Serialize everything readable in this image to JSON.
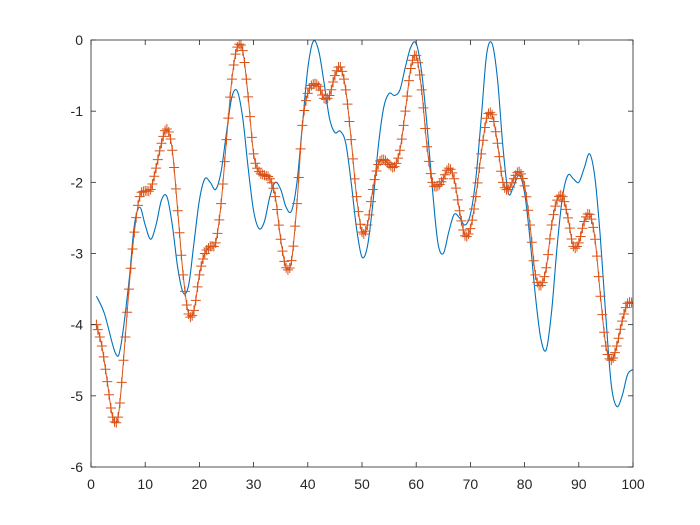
{
  "chart_data": {
    "type": "line",
    "title": "",
    "xlabel": "",
    "ylabel": "",
    "xlim": [
      0,
      100
    ],
    "ylim": [
      -6,
      0
    ],
    "grid": false,
    "box": true,
    "x_ticks": [
      0,
      10,
      20,
      30,
      40,
      50,
      60,
      70,
      80,
      90,
      100
    ],
    "y_ticks": [
      0,
      -1,
      -2,
      -3,
      -4,
      -5,
      -6
    ],
    "x_tick_labels": [
      "0",
      "10",
      "20",
      "30",
      "40",
      "50",
      "60",
      "70",
      "80",
      "90",
      "100"
    ],
    "y_tick_labels": [
      "0",
      "-1",
      "-2",
      "-3",
      "-4",
      "-5",
      "-6"
    ],
    "series": [
      {
        "style": "line",
        "color": "#0072BD",
        "x": [
          1,
          2.5,
          4.5,
          5.5,
          7,
          8,
          9,
          10,
          11,
          12,
          13,
          14,
          15,
          16,
          17,
          18,
          19,
          20,
          21,
          22,
          23,
          24,
          25,
          26,
          27,
          28,
          29,
          30,
          31,
          32,
          33,
          34,
          35,
          36,
          37,
          38,
          39,
          40,
          41,
          42,
          43,
          44,
          45,
          46,
          47,
          48,
          49,
          50,
          51,
          52,
          53,
          54,
          55,
          56,
          57,
          58,
          59,
          60,
          61,
          62,
          63,
          64,
          65,
          66,
          67,
          68,
          69,
          70,
          71,
          72,
          73,
          74,
          75,
          76,
          77,
          78,
          79,
          80,
          81,
          82,
          83,
          84,
          85,
          86,
          87,
          88,
          89,
          90,
          91,
          92,
          93,
          94,
          95,
          96,
          97,
          98,
          99,
          100
        ],
        "y": [
          -3.6,
          -3.85,
          -4.4,
          -4.3,
          -3.4,
          -2.6,
          -2.35,
          -2.6,
          -2.8,
          -2.6,
          -2.25,
          -2.2,
          -2.6,
          -3.2,
          -3.55,
          -3.45,
          -2.85,
          -2.25,
          -1.95,
          -2.0,
          -2.1,
          -1.85,
          -1.3,
          -0.8,
          -0.72,
          -1.1,
          -1.8,
          -2.4,
          -2.65,
          -2.55,
          -2.2,
          -2.0,
          -2.1,
          -2.35,
          -2.4,
          -2.0,
          -1.2,
          -0.4,
          -0.02,
          -0.15,
          -0.6,
          -1.1,
          -1.3,
          -1.28,
          -1.45,
          -2.0,
          -2.65,
          -3.05,
          -2.9,
          -2.3,
          -1.5,
          -0.95,
          -0.75,
          -0.78,
          -0.7,
          -0.38,
          -0.1,
          -0.05,
          -0.45,
          -1.2,
          -2.1,
          -2.85,
          -3.0,
          -2.7,
          -2.45,
          -2.5,
          -2.6,
          -2.45,
          -1.95,
          -1.1,
          -0.2,
          -0.05,
          -0.55,
          -1.5,
          -2.15,
          -2.05,
          -1.9,
          -2.15,
          -2.8,
          -3.6,
          -4.2,
          -4.35,
          -3.8,
          -2.9,
          -2.2,
          -1.9,
          -1.95,
          -2.0,
          -1.8,
          -1.6,
          -1.95,
          -2.8,
          -3.9,
          -4.85,
          -5.15,
          -5.0,
          -4.7,
          -4.63
        ]
      },
      {
        "style": "markers",
        "marker": "+",
        "color": "#D95319",
        "x": [
          1,
          2,
          3,
          4,
          5,
          6,
          7,
          8,
          9,
          10,
          11,
          12,
          13,
          14,
          15,
          16,
          17,
          18,
          19,
          20,
          21,
          22,
          23,
          24,
          25,
          26,
          27,
          28,
          29,
          30,
          31,
          32,
          33,
          34,
          35,
          36,
          37,
          38,
          39,
          40,
          41,
          42,
          43,
          44,
          45,
          46,
          47,
          48,
          49,
          50,
          51,
          52,
          53,
          54,
          55,
          56,
          57,
          58,
          59,
          60,
          61,
          62,
          63,
          64,
          65,
          66,
          67,
          68,
          69,
          70,
          71,
          72,
          73,
          74,
          75,
          76,
          77,
          78,
          79,
          80,
          81,
          82,
          83,
          84,
          85,
          86,
          87,
          88,
          89,
          90,
          91,
          92,
          93,
          94,
          95,
          96,
          97,
          98,
          99,
          100
        ],
        "y": [
          -4.0,
          -4.3,
          -4.8,
          -5.3,
          -5.3,
          -4.5,
          -3.5,
          -2.7,
          -2.2,
          -2.12,
          -2.1,
          -1.8,
          -1.45,
          -1.25,
          -1.55,
          -2.4,
          -3.3,
          -3.85,
          -3.8,
          -3.3,
          -3.0,
          -2.9,
          -2.85,
          -2.3,
          -1.4,
          -0.55,
          -0.1,
          -0.15,
          -0.8,
          -1.6,
          -1.85,
          -1.9,
          -1.95,
          -2.2,
          -2.8,
          -3.2,
          -3.1,
          -2.3,
          -1.2,
          -0.75,
          -0.62,
          -0.65,
          -0.82,
          -0.78,
          -0.5,
          -0.38,
          -0.7,
          -1.4,
          -2.2,
          -2.7,
          -2.6,
          -2.1,
          -1.75,
          -1.68,
          -1.75,
          -1.78,
          -1.55,
          -1.0,
          -0.4,
          -0.22,
          -0.7,
          -1.5,
          -2.0,
          -2.05,
          -1.95,
          -1.8,
          -1.95,
          -2.4,
          -2.75,
          -2.65,
          -2.2,
          -1.6,
          -1.1,
          -1.05,
          -1.45,
          -2.0,
          -2.1,
          -1.95,
          -1.85,
          -2.05,
          -2.6,
          -3.3,
          -3.45,
          -3.2,
          -2.6,
          -2.25,
          -2.2,
          -2.5,
          -2.9,
          -2.85,
          -2.55,
          -2.45,
          -2.8,
          -3.6,
          -4.3,
          -4.5,
          -4.3,
          -3.95,
          -3.7,
          -3.7
        ]
      }
    ]
  }
}
